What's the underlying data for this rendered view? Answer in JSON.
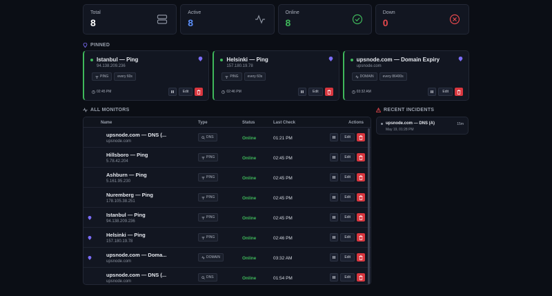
{
  "stats": [
    {
      "label": "Total",
      "value": "8",
      "color": "#ffffff",
      "icon": "server-icon"
    },
    {
      "label": "Active",
      "value": "8",
      "color": "#5b8ff9",
      "icon": "activity-icon"
    },
    {
      "label": "Online",
      "value": "8",
      "color": "#3fb95b",
      "icon": "check-circle-icon"
    },
    {
      "label": "Down",
      "value": "0",
      "color": "#e5484d",
      "icon": "x-circle-icon"
    }
  ],
  "pinned": {
    "heading": "PINNED",
    "cards": [
      {
        "title": "Istanbul — Ping",
        "host": "94.138.209.236",
        "tags": [
          "PING",
          "every 60s"
        ],
        "time": "02:45 PM",
        "edit": "Edit"
      },
      {
        "title": "Helsinki — Ping",
        "host": "157.180.19.78",
        "tags": [
          "PING",
          "every 60s"
        ],
        "time": "02:46 PM",
        "edit": "Edit"
      },
      {
        "title": "upsnode.com — Domain Expiry",
        "host": "upsnode.com",
        "tags": [
          "DOMAIN",
          "every 86400s"
        ],
        "time": "03:32 AM",
        "edit": "Edit"
      }
    ]
  },
  "monitors": {
    "heading": "ALL MONITORS",
    "columns": [
      "Name",
      "Type",
      "Status",
      "Last Check",
      "Actions"
    ],
    "rows": [
      {
        "name": "upsnode.com — DNS (...",
        "host": "upsnode.com",
        "type": "DNS",
        "status": "Online",
        "last": "01:21 PM",
        "pinned": false,
        "edit": "Edit"
      },
      {
        "name": "Hillsboro — Ping",
        "host": "5.78.42.204",
        "type": "PING",
        "status": "Online",
        "last": "02:45 PM",
        "pinned": false,
        "edit": "Edit"
      },
      {
        "name": "Ashburn — Ping",
        "host": "5.161.95.230",
        "type": "PING",
        "status": "Online",
        "last": "02:45 PM",
        "pinned": false,
        "edit": "Edit"
      },
      {
        "name": "Nuremberg — Ping",
        "host": "178.105.38.251",
        "type": "PING",
        "status": "Online",
        "last": "02:45 PM",
        "pinned": false,
        "edit": "Edit"
      },
      {
        "name": "Istanbul — Ping",
        "host": "94.138.209.236",
        "type": "PING",
        "status": "Online",
        "last": "02:45 PM",
        "pinned": true,
        "edit": "Edit"
      },
      {
        "name": "Helsinki — Ping",
        "host": "157.180.19.78",
        "type": "PING",
        "status": "Online",
        "last": "02:46 PM",
        "pinned": true,
        "edit": "Edit"
      },
      {
        "name": "upsnode.com — Doma...",
        "host": "upsnode.com",
        "type": "DOMAIN",
        "status": "Online",
        "last": "03:32 AM",
        "pinned": true,
        "edit": "Edit"
      },
      {
        "name": "upsnode.com — DNS (...",
        "host": "upsnode.com",
        "type": "DNS",
        "status": "Online",
        "last": "01:54 PM",
        "pinned": false,
        "edit": "Edit"
      }
    ]
  },
  "incidents": {
    "heading": "RECENT INCIDENTS",
    "items": [
      {
        "title": "upsnode.com — DNS (A)",
        "date": "May 19, 01:28 PM",
        "ago": "15m"
      }
    ]
  },
  "colors": {
    "online": "#3fb95b",
    "pin": "#7b6cf6",
    "danger": "#d9363e"
  }
}
